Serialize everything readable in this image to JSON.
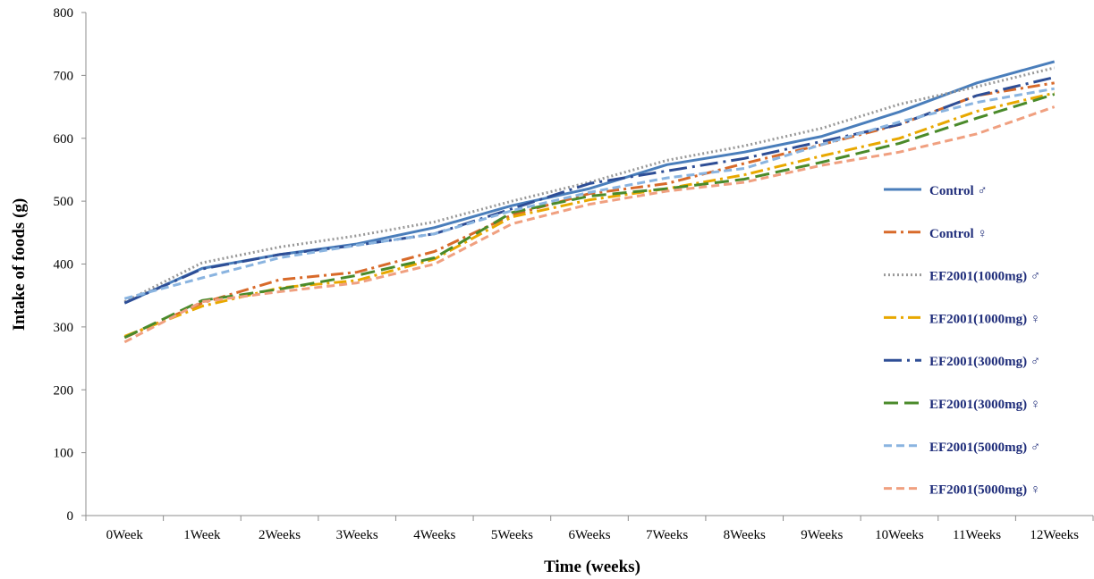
{
  "chart_data": {
    "type": "line",
    "title": "",
    "xlabel": "Time (weeks)",
    "ylabel": "Intake of foods (g)",
    "ylim": [
      0,
      800
    ],
    "yticks": [
      "0",
      "100",
      "200",
      "300",
      "400",
      "500",
      "600",
      "700",
      "800"
    ],
    "grid": false,
    "legend_position": "right",
    "categories": [
      "0Week",
      "1Week",
      "2Weeks",
      "3Weeks",
      "4Weeks",
      "5Weeks",
      "6Weeks",
      "7Weeks",
      "8Weeks",
      "9Weeks",
      "10Weeks",
      "11Weeks",
      "12Weeks"
    ],
    "series": [
      {
        "name": "Control ♂",
        "color": "#4a7ebb",
        "dash": "solid",
        "values": [
          338,
          393,
          415,
          432,
          458,
          493,
          520,
          558,
          578,
          603,
          642,
          688,
          722
        ]
      },
      {
        "name": "Control ♀",
        "color": "#d86a2a",
        "dash": "dashdot",
        "values": [
          283,
          338,
          375,
          387,
          420,
          478,
          512,
          528,
          560,
          590,
          622,
          668,
          688
        ]
      },
      {
        "name": "EF2001(1000mg) ♂",
        "color": "#999999",
        "dash": "dot",
        "values": [
          340,
          402,
          427,
          445,
          467,
          500,
          530,
          565,
          588,
          616,
          654,
          682,
          712
        ]
      },
      {
        "name": "EF2001(1000mg) ♀",
        "color": "#e8a800",
        "dash": "dashdot",
        "values": [
          285,
          333,
          362,
          374,
          408,
          475,
          502,
          520,
          542,
          572,
          600,
          643,
          672
        ]
      },
      {
        "name": "EF2001(3000mg) ♂",
        "color": "#2e4e96",
        "dash": "longdashdot",
        "values": [
          338,
          392,
          415,
          430,
          448,
          488,
          528,
          548,
          568,
          595,
          622,
          668,
          697
        ]
      },
      {
        "name": "EF2001(3000mg) ♀",
        "color": "#4a8a2a",
        "dash": "longdash",
        "values": [
          283,
          342,
          360,
          382,
          410,
          482,
          508,
          520,
          535,
          562,
          592,
          632,
          670
        ]
      },
      {
        "name": "EF2001(5000mg) ♂",
        "color": "#8ab4e0",
        "dash": "dash",
        "values": [
          345,
          378,
          410,
          430,
          448,
          485,
          514,
          537,
          552,
          590,
          626,
          657,
          679
        ]
      },
      {
        "name": "EF2001(5000mg) ♀",
        "color": "#f0a080",
        "dash": "dash",
        "values": [
          276,
          340,
          356,
          370,
          400,
          464,
          495,
          516,
          530,
          557,
          578,
          607,
          650
        ]
      }
    ]
  }
}
